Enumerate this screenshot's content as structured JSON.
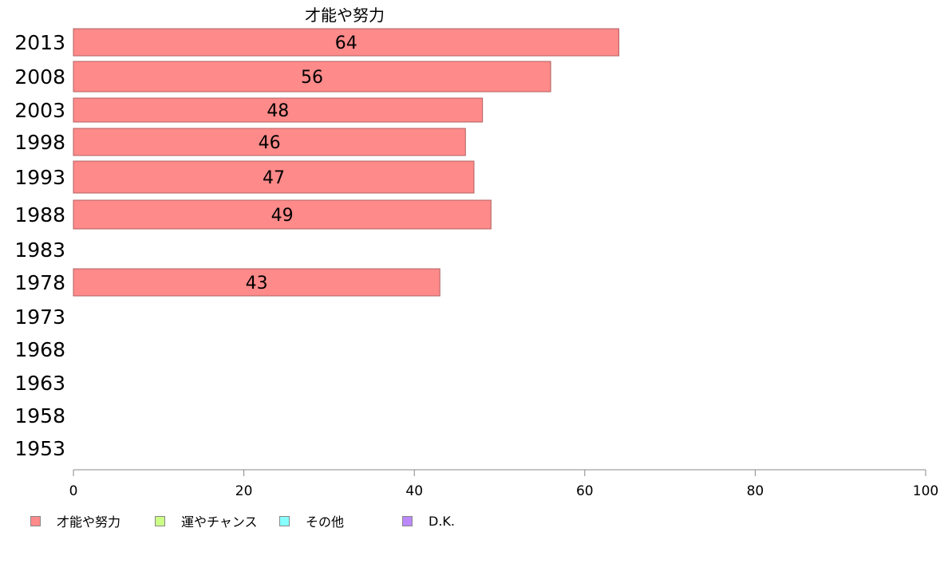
{
  "chart_data": {
    "type": "bar",
    "orientation": "horizontal",
    "title": "才能や努力",
    "categories": [
      "2013",
      "2008",
      "2003",
      "1998",
      "1993",
      "1988",
      "1983",
      "1978",
      "1973",
      "1968",
      "1963",
      "1958",
      "1953"
    ],
    "series": [
      {
        "name": "才能や努力",
        "color": "#ff8a8a",
        "values": [
          64,
          56,
          48,
          46,
          47,
          49,
          null,
          43,
          null,
          null,
          null,
          null,
          null
        ]
      }
    ],
    "xlim": [
      0,
      100
    ],
    "xticks": [
      0,
      20,
      40,
      60,
      80,
      100
    ],
    "grid": false,
    "legend_position": "bottom-left",
    "data_labels": true
  },
  "legend": {
    "items": [
      {
        "label": "才能や努力",
        "color": "#ff8a8a"
      },
      {
        "label": "運やチャンス",
        "color": "#ccff88"
      },
      {
        "label": "その他",
        "color": "#88ffff"
      },
      {
        "label": "D.K.",
        "color": "#bb88ff"
      }
    ]
  }
}
